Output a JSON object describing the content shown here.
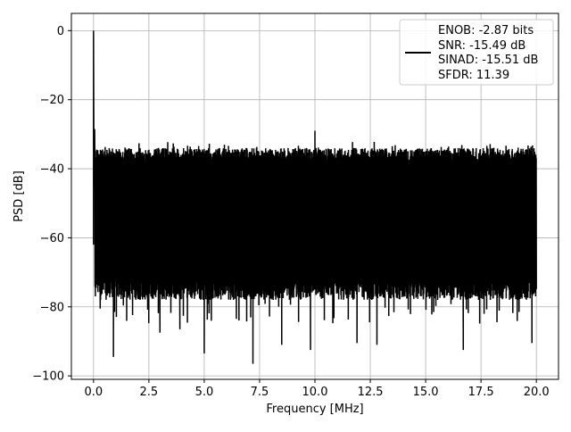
{
  "chart_data": {
    "type": "line",
    "xlabel": "Frequency [MHz]",
    "ylabel": "PSD [dB]",
    "xlim": [
      -1.0,
      21.0
    ],
    "ylim": [
      -101.0,
      5.0
    ],
    "xticks": [
      0.0,
      2.5,
      5.0,
      7.5,
      10.0,
      12.5,
      15.0,
      17.5,
      20.0
    ],
    "xtick_labels": [
      "0.0",
      "2.5",
      "5.0",
      "7.5",
      "10.0",
      "12.5",
      "15.0",
      "17.5",
      "20.0"
    ],
    "yticks": [
      0,
      -20,
      -40,
      -60,
      -80,
      -100
    ],
    "ytick_labels": [
      "0",
      "−20",
      "−40",
      "−60",
      "−80",
      "−100"
    ],
    "grid": true,
    "legend_placement": "top-right",
    "legend_lines": [
      "ENOB: -2.87 bits",
      "SNR: -15.49 dB",
      "SINAD: -15.51 dB",
      "SFDR: 11.39"
    ],
    "series": [
      {
        "color": "#000000",
        "description_values": {
          "peak": {
            "x": 0.0,
            "y": 0.0
          },
          "spur_after_peak": {
            "x": 0.05,
            "y": -28.5
          },
          "noise_floor_top_approx": -34,
          "noise_floor_upper_envelope_max": {
            "x": 10.0,
            "y": -29.0
          },
          "noise_floor_dense_bottom_approx": -75,
          "deep_notches": [
            {
              "x": 0.9,
              "y": -94.5
            },
            {
              "x": 3.0,
              "y": -87.5
            },
            {
              "x": 3.9,
              "y": -86.5
            },
            {
              "x": 5.0,
              "y": -93.5
            },
            {
              "x": 7.2,
              "y": -96.5
            },
            {
              "x": 8.5,
              "y": -91.0
            },
            {
              "x": 9.8,
              "y": -92.5
            },
            {
              "x": 11.9,
              "y": -90.5
            },
            {
              "x": 12.8,
              "y": -91.0
            },
            {
              "x": 16.7,
              "y": -92.5
            },
            {
              "x": 19.8,
              "y": -90.5
            }
          ]
        }
      }
    ]
  }
}
